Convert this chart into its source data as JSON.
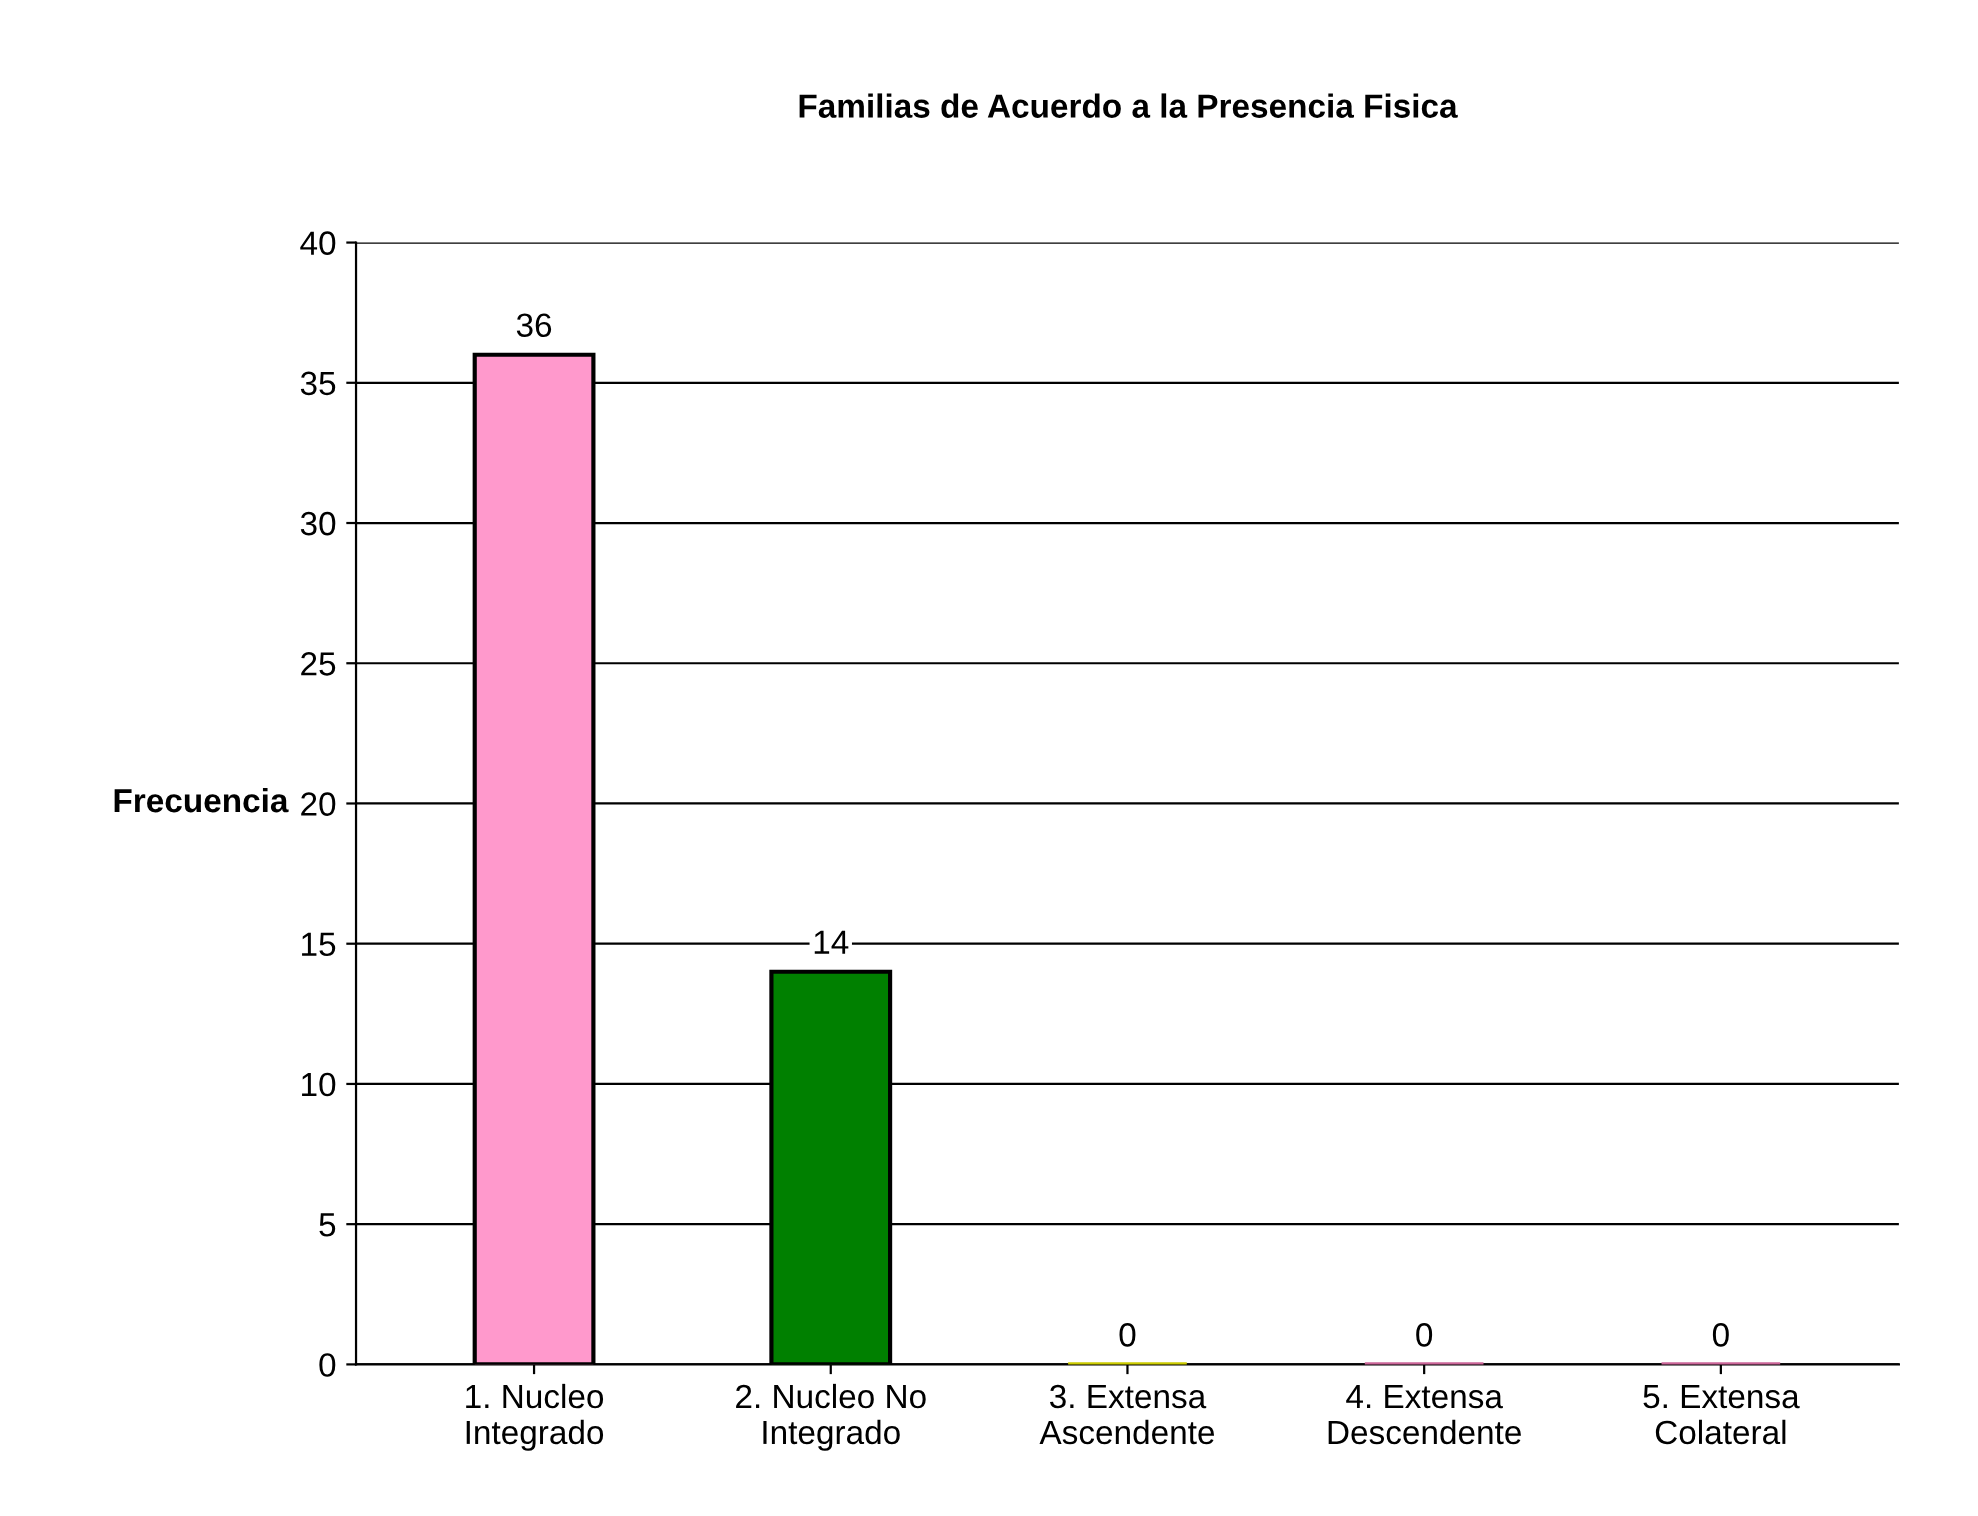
{
  "chart_data": {
    "type": "bar",
    "title": "Familias de Acuerdo a la Presencia Fisica",
    "ylabel": "Frecuencia",
    "categories": [
      "1. Nucleo\nIntegrado",
      "2. Nucleo No\nIntegrado",
      "3. Extensa\nAscendente",
      "4. Extensa\nDescendente",
      "5. Extensa\nColateral"
    ],
    "values": [
      36,
      14,
      0,
      0,
      0
    ],
    "colors": [
      "#ff99cc",
      "#008000",
      "#cccc00",
      "#cc6699",
      "#cc6699"
    ],
    "ylim": [
      0,
      40
    ],
    "yticks": [
      0,
      5,
      10,
      15,
      20,
      25,
      30,
      35,
      40
    ],
    "grid": "y",
    "data_labels": true
  }
}
